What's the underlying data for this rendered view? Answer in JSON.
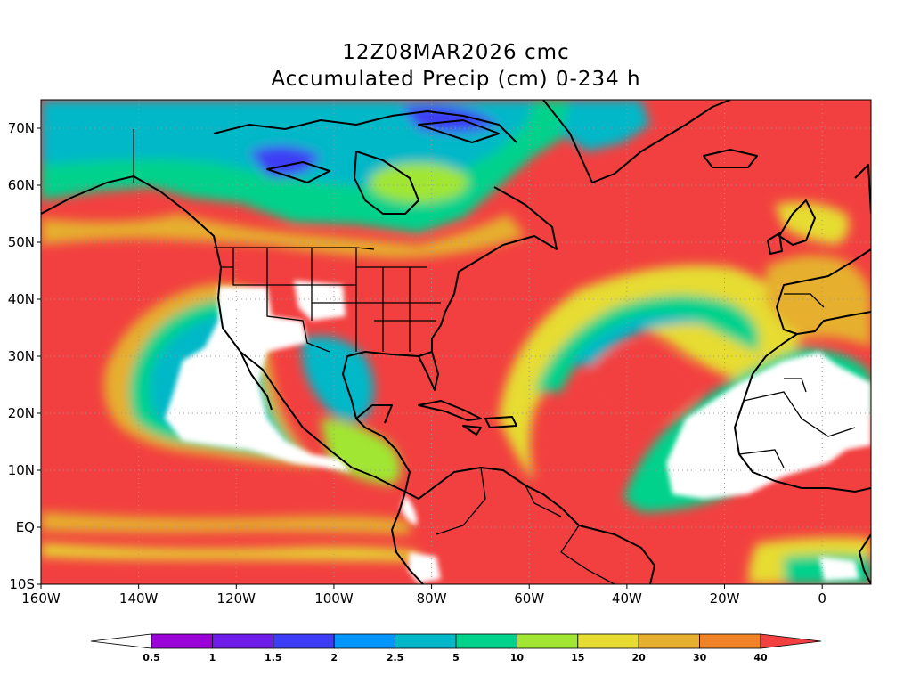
{
  "title": {
    "line1": "12Z08MAR2026 cmc",
    "line2": "Accumulated Precip (cm) 0-234 h"
  },
  "map": {
    "lon_range": [
      -160,
      10
    ],
    "lat_range": [
      -10,
      75
    ],
    "lon_ticks": [
      {
        "value": -160,
        "label": "160W"
      },
      {
        "value": -140,
        "label": "140W"
      },
      {
        "value": -120,
        "label": "120W"
      },
      {
        "value": -100,
        "label": "100W"
      },
      {
        "value": -80,
        "label": "80W"
      },
      {
        "value": -60,
        "label": "60W"
      },
      {
        "value": -40,
        "label": "40W"
      },
      {
        "value": -20,
        "label": "20W"
      },
      {
        "value": 0,
        "label": "0"
      }
    ],
    "lat_ticks": [
      {
        "value": 70,
        "label": "70N"
      },
      {
        "value": 60,
        "label": "60N"
      },
      {
        "value": 50,
        "label": "50N"
      },
      {
        "value": 40,
        "label": "40N"
      },
      {
        "value": 30,
        "label": "30N"
      },
      {
        "value": 20,
        "label": "20N"
      },
      {
        "value": 10,
        "label": "10N"
      },
      {
        "value": 0,
        "label": "EQ"
      },
      {
        "value": -10,
        "label": "10S"
      }
    ],
    "background_color": "#f24040",
    "grid": "dotted"
  },
  "colorbar": {
    "bins": [
      {
        "color": "#ffffff",
        "label": ""
      },
      {
        "color": "#9b00d8",
        "label": "0.5"
      },
      {
        "color": "#6e1ce8",
        "label": "1"
      },
      {
        "color": "#3c3cf5",
        "label": "1.5"
      },
      {
        "color": "#0496ff",
        "label": "2"
      },
      {
        "color": "#02b8c8",
        "label": "2.5"
      },
      {
        "color": "#00d28c",
        "label": "5"
      },
      {
        "color": "#a0e632",
        "label": "10"
      },
      {
        "color": "#e6dc32",
        "label": "15"
      },
      {
        "color": "#e6af2d",
        "label": "20"
      },
      {
        "color": "#f08228",
        "label": "30"
      },
      {
        "color": "#f24040",
        "label": "40"
      }
    ]
  }
}
